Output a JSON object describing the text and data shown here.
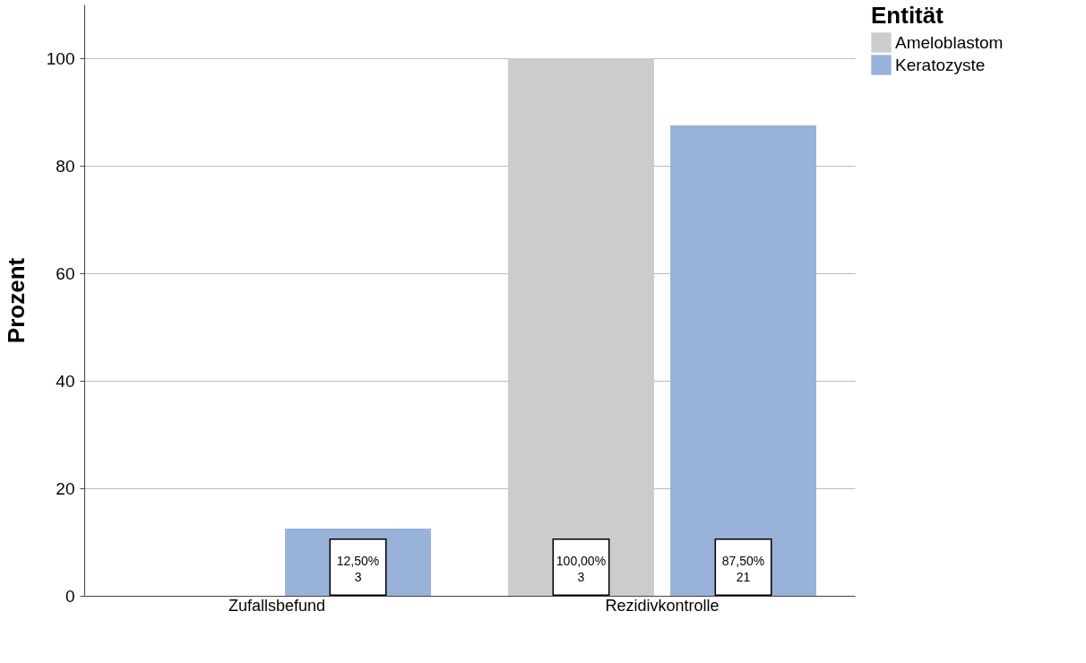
{
  "chart_data": {
    "type": "bar",
    "ylabel": "Prozent",
    "legend_title": "Entität",
    "legend": "top right",
    "grid": "y",
    "categories": [
      "Zufallsbefund",
      "Rezidivkontrolle"
    ],
    "ylim": [
      0,
      110
    ],
    "yticks": [
      0,
      20,
      40,
      60,
      80,
      100
    ],
    "series": [
      {
        "name": "Ameloblastom",
        "color": "#cccccc",
        "values": [
          null,
          100
        ],
        "value_labels": [
          null,
          "100,00%\n3"
        ]
      },
      {
        "name": "Keratozyste",
        "color": "#98b2d9",
        "values": [
          12.5,
          87.5
        ],
        "value_labels": [
          "12,50%\n3",
          "87,50%\n21"
        ]
      }
    ]
  }
}
